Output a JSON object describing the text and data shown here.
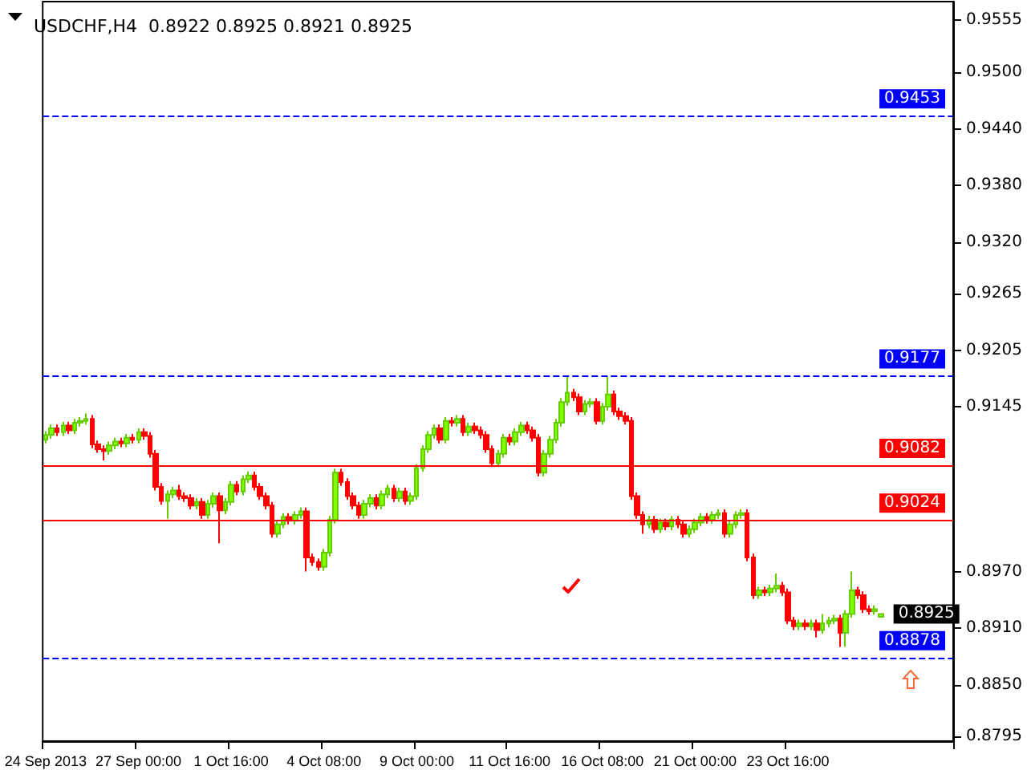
{
  "chart_data": {
    "type": "candlestick",
    "title": "USDCHF,H4  0.8922 0.8925 0.8921 0.8925",
    "categories": [
      "24 Sep 2013",
      null,
      null,
      null,
      null,
      null,
      null,
      null,
      null,
      null,
      null,
      null,
      null,
      null,
      null,
      null,
      "27 Sep 00:00",
      null,
      null,
      null,
      null,
      null,
      null,
      null,
      null,
      null,
      null,
      null,
      null,
      null,
      null,
      null,
      "1 Oct 16:00",
      null,
      null,
      null,
      null,
      null,
      null,
      null,
      null,
      null,
      null,
      null,
      null,
      null,
      null,
      null,
      "4 Oct 08:00",
      null,
      null,
      null,
      null,
      null,
      null,
      null,
      null,
      null,
      null,
      null,
      null,
      null,
      null,
      null,
      "9 Oct 00:00",
      null,
      null,
      null,
      null,
      null,
      null,
      null,
      null,
      null,
      null,
      null,
      null,
      null,
      null,
      null,
      "11 Oct 16:00",
      null,
      null,
      null,
      null,
      null,
      null,
      null,
      null,
      null,
      null,
      null,
      null,
      null,
      null,
      null,
      "16 Oct 08:00",
      null,
      null,
      null,
      null,
      null,
      null,
      null,
      null,
      null,
      null,
      null,
      null,
      null,
      null,
      null,
      "21 Oct 00:00",
      null,
      null,
      null,
      null,
      null,
      null,
      null,
      null,
      null,
      null,
      null,
      null,
      null,
      null,
      null,
      "23 Oct 16:00",
      null,
      null,
      null,
      null,
      null,
      null,
      null,
      null,
      null,
      null,
      null,
      null,
      null,
      null,
      null,
      null
    ],
    "ohlc": [
      [
        0.911,
        0.9119,
        0.9106,
        0.9115
      ],
      [
        0.9115,
        0.9126,
        0.9111,
        0.9122
      ],
      [
        0.9122,
        0.9126,
        0.9114,
        0.9118
      ],
      [
        0.9118,
        0.9129,
        0.9114,
        0.9125
      ],
      [
        0.9125,
        0.9129,
        0.9116,
        0.912
      ],
      [
        0.912,
        0.9132,
        0.9116,
        0.9128
      ],
      [
        0.9128,
        0.9134,
        0.9124,
        0.913
      ],
      [
        0.913,
        0.9138,
        0.9126,
        0.9132
      ],
      [
        0.9132,
        0.9136,
        0.9101,
        0.9105
      ],
      [
        0.9105,
        0.9109,
        0.9096,
        0.91
      ],
      [
        0.91,
        0.9104,
        0.9088,
        0.9098
      ],
      [
        0.9098,
        0.9108,
        0.9094,
        0.9104
      ],
      [
        0.9104,
        0.9112,
        0.91,
        0.9108
      ],
      [
        0.9108,
        0.9112,
        0.9102,
        0.9106
      ],
      [
        0.9106,
        0.9116,
        0.9102,
        0.9112
      ],
      [
        0.9112,
        0.9116,
        0.9106,
        0.911
      ],
      [
        0.911,
        0.9122,
        0.9106,
        0.9118
      ],
      [
        0.9118,
        0.9122,
        0.911,
        0.9114
      ],
      [
        0.9114,
        0.9118,
        0.9091,
        0.9095
      ],
      [
        0.9095,
        0.9099,
        0.9056,
        0.906
      ],
      [
        0.906,
        0.9064,
        0.9041,
        0.9045
      ],
      [
        0.9045,
        0.9056,
        0.9026,
        0.9052
      ],
      [
        0.9052,
        0.906,
        0.9048,
        0.9056
      ],
      [
        0.9056,
        0.9062,
        0.9046,
        0.905
      ],
      [
        0.905,
        0.9054,
        0.9044,
        0.9048
      ],
      [
        0.9048,
        0.9052,
        0.9036,
        0.904
      ],
      [
        0.904,
        0.9048,
        0.9036,
        0.9044
      ],
      [
        0.9044,
        0.9048,
        0.9026,
        0.903
      ],
      [
        0.903,
        0.9046,
        0.9026,
        0.9042
      ],
      [
        0.9042,
        0.9054,
        0.9038,
        0.905
      ],
      [
        0.905,
        0.9054,
        0.9,
        0.9035
      ],
      [
        0.9035,
        0.9048,
        0.9031,
        0.9044
      ],
      [
        0.9044,
        0.9066,
        0.904,
        0.9062
      ],
      [
        0.9062,
        0.9066,
        0.9051,
        0.9055
      ],
      [
        0.9055,
        0.9072,
        0.9051,
        0.9068
      ],
      [
        0.9068,
        0.9076,
        0.9064,
        0.9072
      ],
      [
        0.9072,
        0.9076,
        0.9056,
        0.906
      ],
      [
        0.906,
        0.9064,
        0.9046,
        0.905
      ],
      [
        0.905,
        0.9054,
        0.9036,
        0.904
      ],
      [
        0.904,
        0.9044,
        0.9006,
        0.901
      ],
      [
        0.901,
        0.9024,
        0.9006,
        0.902
      ],
      [
        0.902,
        0.9032,
        0.9016,
        0.9028
      ],
      [
        0.9028,
        0.9032,
        0.902,
        0.9024
      ],
      [
        0.9024,
        0.9034,
        0.902,
        0.903
      ],
      [
        0.903,
        0.9038,
        0.9026,
        0.9034
      ],
      [
        0.9034,
        0.9038,
        0.897,
        0.8985
      ],
      [
        0.8985,
        0.8989,
        0.8976,
        0.898
      ],
      [
        0.898,
        0.8984,
        0.8971,
        0.8975
      ],
      [
        0.8975,
        0.8994,
        0.8971,
        0.899
      ],
      [
        0.899,
        0.9029,
        0.8986,
        0.9025
      ],
      [
        0.9025,
        0.9079,
        0.9021,
        0.9075
      ],
      [
        0.9075,
        0.9079,
        0.9061,
        0.9065
      ],
      [
        0.9065,
        0.9069,
        0.9046,
        0.905
      ],
      [
        0.905,
        0.9054,
        0.9036,
        0.904
      ],
      [
        0.904,
        0.9044,
        0.9026,
        0.903
      ],
      [
        0.903,
        0.9046,
        0.9026,
        0.9042
      ],
      [
        0.9042,
        0.9052,
        0.9038,
        0.9048
      ],
      [
        0.9048,
        0.9052,
        0.9036,
        0.904
      ],
      [
        0.904,
        0.9056,
        0.9036,
        0.9052
      ],
      [
        0.9052,
        0.9062,
        0.9048,
        0.9058
      ],
      [
        0.9058,
        0.9062,
        0.9044,
        0.9048
      ],
      [
        0.9048,
        0.9059,
        0.9044,
        0.9055
      ],
      [
        0.9055,
        0.9059,
        0.9041,
        0.9045
      ],
      [
        0.9045,
        0.9054,
        0.9041,
        0.905
      ],
      [
        0.905,
        0.9084,
        0.9046,
        0.908
      ],
      [
        0.908,
        0.9104,
        0.9076,
        0.91
      ],
      [
        0.91,
        0.9119,
        0.9096,
        0.9115
      ],
      [
        0.9115,
        0.9126,
        0.9111,
        0.9122
      ],
      [
        0.9122,
        0.9126,
        0.9106,
        0.911
      ],
      [
        0.911,
        0.9134,
        0.9106,
        0.913
      ],
      [
        0.913,
        0.9134,
        0.9124,
        0.9128
      ],
      [
        0.9128,
        0.9136,
        0.9124,
        0.9132
      ],
      [
        0.9132,
        0.9136,
        0.9114,
        0.9118
      ],
      [
        0.9118,
        0.9128,
        0.9114,
        0.9124
      ],
      [
        0.9124,
        0.9128,
        0.9116,
        0.912
      ],
      [
        0.912,
        0.9124,
        0.9111,
        0.9115
      ],
      [
        0.9115,
        0.9119,
        0.9096,
        0.91
      ],
      [
        0.91,
        0.9104,
        0.9081,
        0.9085
      ],
      [
        0.9085,
        0.9099,
        0.9081,
        0.9095
      ],
      [
        0.9095,
        0.9116,
        0.9091,
        0.9112
      ],
      [
        0.9112,
        0.9116,
        0.9104,
        0.9108
      ],
      [
        0.9108,
        0.9122,
        0.9104,
        0.9118
      ],
      [
        0.9118,
        0.9129,
        0.9114,
        0.9125
      ],
      [
        0.9125,
        0.9129,
        0.9116,
        0.912
      ],
      [
        0.912,
        0.9124,
        0.9108,
        0.9112
      ],
      [
        0.9112,
        0.9116,
        0.9071,
        0.9075
      ],
      [
        0.9075,
        0.9099,
        0.9071,
        0.9095
      ],
      [
        0.9095,
        0.9114,
        0.9091,
        0.911
      ],
      [
        0.911,
        0.9132,
        0.9106,
        0.9128
      ],
      [
        0.9128,
        0.9154,
        0.9124,
        0.915
      ],
      [
        0.915,
        0.9177,
        0.9146,
        0.916
      ],
      [
        0.916,
        0.9164,
        0.9151,
        0.9155
      ],
      [
        0.9155,
        0.9159,
        0.9136,
        0.914
      ],
      [
        0.914,
        0.9152,
        0.9136,
        0.9148
      ],
      [
        0.9148,
        0.9154,
        0.9144,
        0.915
      ],
      [
        0.915,
        0.9154,
        0.9126,
        0.913
      ],
      [
        0.913,
        0.9149,
        0.9126,
        0.9145
      ],
      [
        0.9145,
        0.9177,
        0.9141,
        0.9158
      ],
      [
        0.9158,
        0.9162,
        0.9136,
        0.914
      ],
      [
        0.914,
        0.9144,
        0.9131,
        0.9135
      ],
      [
        0.9135,
        0.9139,
        0.9126,
        0.913
      ],
      [
        0.913,
        0.9134,
        0.9046,
        0.905
      ],
      [
        0.905,
        0.9054,
        0.9026,
        0.903
      ],
      [
        0.903,
        0.9034,
        0.901,
        0.902
      ],
      [
        0.902,
        0.9029,
        0.9016,
        0.9025
      ],
      [
        0.9025,
        0.9029,
        0.9011,
        0.9015
      ],
      [
        0.9015,
        0.9026,
        0.9011,
        0.9022
      ],
      [
        0.9022,
        0.9026,
        0.9014,
        0.9018
      ],
      [
        0.9018,
        0.9029,
        0.9014,
        0.9025
      ],
      [
        0.9025,
        0.9029,
        0.9016,
        0.902
      ],
      [
        0.902,
        0.9024,
        0.9006,
        0.901
      ],
      [
        0.901,
        0.9019,
        0.9006,
        0.9015
      ],
      [
        0.9015,
        0.9026,
        0.9011,
        0.9022
      ],
      [
        0.9022,
        0.9032,
        0.9018,
        0.9028
      ],
      [
        0.9028,
        0.9032,
        0.9021,
        0.9025
      ],
      [
        0.9025,
        0.9034,
        0.9021,
        0.903
      ],
      [
        0.903,
        0.9036,
        0.9026,
        0.9032
      ],
      [
        0.9032,
        0.9036,
        0.9006,
        0.901
      ],
      [
        0.901,
        0.9024,
        0.9006,
        0.902
      ],
      [
        0.902,
        0.9034,
        0.9016,
        0.903
      ],
      [
        0.903,
        0.9036,
        0.9026,
        0.9032
      ],
      [
        0.9032,
        0.9036,
        0.8981,
        0.8985
      ],
      [
        0.8985,
        0.8989,
        0.8941,
        0.8945
      ],
      [
        0.8945,
        0.8954,
        0.8941,
        0.895
      ],
      [
        0.895,
        0.8954,
        0.8944,
        0.8948
      ],
      [
        0.8948,
        0.8956,
        0.8944,
        0.8952
      ],
      [
        0.8952,
        0.8968,
        0.8948,
        0.8955
      ],
      [
        0.8955,
        0.8959,
        0.8944,
        0.8948
      ],
      [
        0.8948,
        0.8952,
        0.8914,
        0.8918
      ],
      [
        0.8918,
        0.8922,
        0.8908,
        0.8912
      ],
      [
        0.8912,
        0.8919,
        0.8908,
        0.8915
      ],
      [
        0.8915,
        0.8919,
        0.8908,
        0.8912
      ],
      [
        0.8912,
        0.8919,
        0.8908,
        0.8915
      ],
      [
        0.8915,
        0.8919,
        0.89,
        0.8908
      ],
      [
        0.8908,
        0.8925,
        0.8904,
        0.8915
      ],
      [
        0.8915,
        0.8922,
        0.8911,
        0.8918
      ],
      [
        0.8918,
        0.8924,
        0.8914,
        0.892
      ],
      [
        0.892,
        0.8924,
        0.889,
        0.8905
      ],
      [
        0.8905,
        0.8929,
        0.889,
        0.8925
      ],
      [
        0.8925,
        0.897,
        0.8921,
        0.895
      ],
      [
        0.895,
        0.8954,
        0.8941,
        0.8945
      ],
      [
        0.8945,
        0.8949,
        0.8926,
        0.893
      ],
      [
        0.893,
        0.8934,
        0.8924,
        0.8928
      ],
      [
        0.8928,
        0.8934,
        0.8924,
        0.893
      ],
      [
        0.8922,
        0.8925,
        0.8921,
        0.8925
      ]
    ],
    "ylim": [
      0.879,
      0.9575
    ],
    "yticks": [
      {
        "value": 0.9555,
        "label": "0.9555"
      },
      {
        "value": 0.95,
        "label": "0.9500"
      },
      {
        "value": 0.944,
        "label": "0.9440"
      },
      {
        "value": 0.938,
        "label": "0.9380"
      },
      {
        "value": 0.932,
        "label": "0.9320"
      },
      {
        "value": 0.9265,
        "label": "0.9265"
      },
      {
        "value": 0.9205,
        "label": "0.9205"
      },
      {
        "value": 0.9145,
        "label": "0.9145"
      },
      {
        "value": 0.897,
        "label": "0.8970"
      },
      {
        "value": 0.891,
        "label": "0.8910"
      },
      {
        "value": 0.885,
        "label": "0.8850"
      },
      {
        "value": 0.8795,
        "label": "0.8795"
      }
    ],
    "ref_lines": [
      {
        "axis": "y",
        "value": 0.9453,
        "label": "0.9453",
        "color": "#0000ff",
        "line_style": "dashed"
      },
      {
        "axis": "y",
        "value": 0.9177,
        "label": "0.9177",
        "color": "#0000ff",
        "line_style": "dashed"
      },
      {
        "axis": "y",
        "value": 0.9082,
        "label": "0.9082",
        "color": "#ff0000",
        "line_style": "solid"
      },
      {
        "axis": "y",
        "value": 0.9024,
        "label": "0.9024",
        "color": "#ff0000",
        "line_style": "solid"
      },
      {
        "axis": "y",
        "value": 0.8878,
        "label": "0.8878",
        "color": "#0000ff",
        "line_style": "dashed"
      }
    ],
    "annotations": [
      "0.8925"
    ]
  }
}
